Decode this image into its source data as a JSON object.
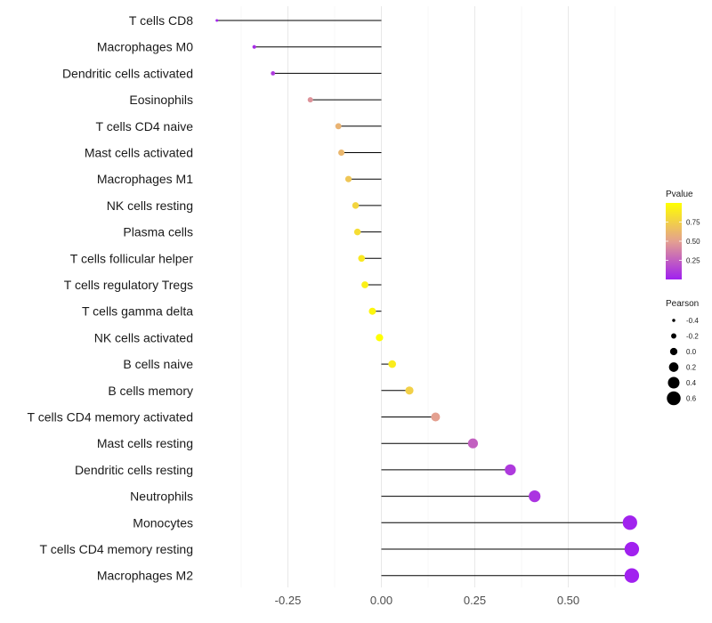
{
  "chart_data": {
    "type": "lollipop",
    "title": "",
    "xlabel": "",
    "ylabel": "",
    "xlim": [
      -0.48,
      0.72
    ],
    "xticks": [
      -0.25,
      0.0,
      0.25,
      0.5
    ],
    "xtick_labels": [
      "-0.25",
      "0.00",
      "0.25",
      "0.50"
    ],
    "baseline": 0.0,
    "grid": true,
    "categories": [
      "T cells CD8",
      "Macrophages M0",
      "Dendritic cells activated",
      "Eosinophils",
      "T cells CD4 naive",
      "Mast cells activated",
      "Macrophages M1",
      "NK cells resting",
      "Plasma cells",
      "T cells follicular helper",
      "T cells regulatory  Tregs ",
      "T cells gamma delta",
      "NK cells activated",
      "B cells naive",
      "B cells memory",
      "T cells CD4 memory activated",
      "Mast cells resting",
      "Dendritic cells resting",
      "Neutrophils",
      "Monocytes",
      "T cells CD4 memory resting",
      "Macrophages M2"
    ],
    "pearson": [
      -0.44,
      -0.34,
      -0.29,
      -0.19,
      -0.115,
      -0.107,
      -0.088,
      -0.069,
      -0.064,
      -0.053,
      -0.044,
      -0.024,
      -0.005,
      0.029,
      0.075,
      0.145,
      0.245,
      0.345,
      0.41,
      0.665,
      0.67,
      0.67
    ],
    "pvalue": [
      0.02,
      0.05,
      0.1,
      0.45,
      0.6,
      0.62,
      0.7,
      0.78,
      0.82,
      0.88,
      0.92,
      0.95,
      1.0,
      0.9,
      0.75,
      0.5,
      0.25,
      0.1,
      0.08,
      0.01,
      0.005,
      0.005
    ],
    "color_legend": {
      "title": "Pvalue",
      "labels": [
        "0.75",
        "0.50",
        "0.25"
      ],
      "values": [
        0.75,
        0.5,
        0.25
      ],
      "range": [
        0.0,
        1.0
      ],
      "low_color": "#A020F0",
      "mid_color": "#E4A090",
      "high_color": "#FFFF00"
    },
    "size_legend": {
      "title": "Pearson",
      "labels": [
        "-0.4",
        "-0.2",
        "0.0",
        "0.2",
        "0.4",
        "0.6"
      ],
      "values": [
        -0.4,
        -0.2,
        0.0,
        0.2,
        0.4,
        0.6
      ]
    }
  }
}
